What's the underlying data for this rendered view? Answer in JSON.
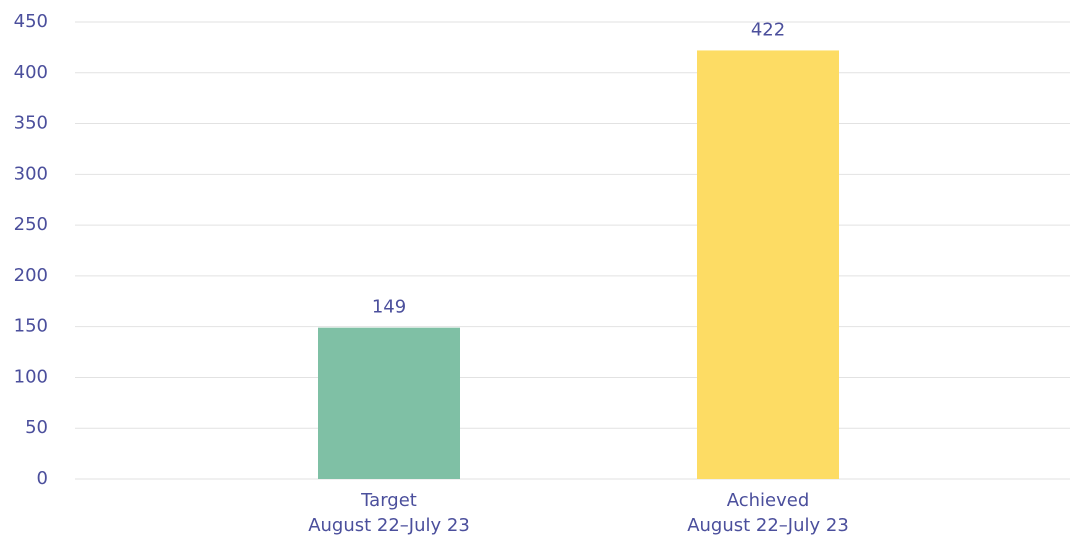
{
  "chart_data": {
    "type": "bar",
    "categories": [
      [
        "Target",
        "August 22–July 23"
      ],
      [
        "Achieved",
        "August 22–July 23"
      ]
    ],
    "values": [
      149,
      422
    ],
    "colors": [
      "#7fc0a5",
      "#fddc64"
    ],
    "ylim": [
      0,
      450
    ],
    "yticks": [
      0,
      50,
      100,
      150,
      200,
      250,
      300,
      350,
      400,
      450
    ],
    "grid": true
  }
}
